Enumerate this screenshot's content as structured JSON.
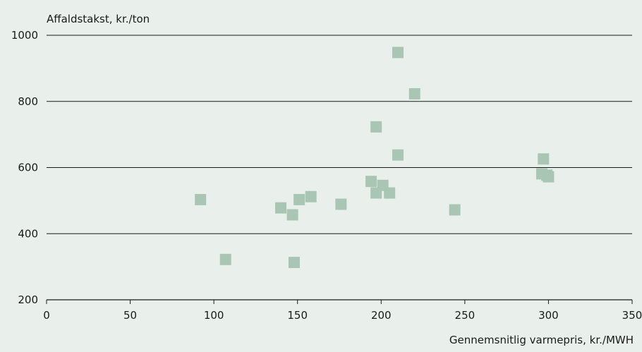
{
  "chart_data": {
    "type": "scatter",
    "title": "",
    "ylabel": "Affaldstakst, kr./ton",
    "xlabel": "Gennemsnitlig varmepris, kr./MWH",
    "xlim": [
      0,
      350
    ],
    "ylim": [
      200,
      1000
    ],
    "x_ticks": [
      0,
      50,
      100,
      150,
      200,
      250,
      300,
      350
    ],
    "y_ticks": [
      200,
      400,
      600,
      800,
      1000
    ],
    "grid": "horizontal",
    "marker": "square",
    "marker_color": "#a9c6b4",
    "background_color": "#e9f0eb",
    "points": [
      {
        "x": 92,
        "y": 503
      },
      {
        "x": 107,
        "y": 322
      },
      {
        "x": 140,
        "y": 478
      },
      {
        "x": 147,
        "y": 457
      },
      {
        "x": 148,
        "y": 313
      },
      {
        "x": 151,
        "y": 503
      },
      {
        "x": 158,
        "y": 512
      },
      {
        "x": 176,
        "y": 489
      },
      {
        "x": 194,
        "y": 558
      },
      {
        "x": 197,
        "y": 523
      },
      {
        "x": 197,
        "y": 723
      },
      {
        "x": 201,
        "y": 546
      },
      {
        "x": 205,
        "y": 523
      },
      {
        "x": 210,
        "y": 638
      },
      {
        "x": 210,
        "y": 948
      },
      {
        "x": 220,
        "y": 823
      },
      {
        "x": 244,
        "y": 472
      },
      {
        "x": 296,
        "y": 581
      },
      {
        "x": 297,
        "y": 626
      },
      {
        "x": 299,
        "y": 577
      },
      {
        "x": 300,
        "y": 572
      }
    ]
  }
}
